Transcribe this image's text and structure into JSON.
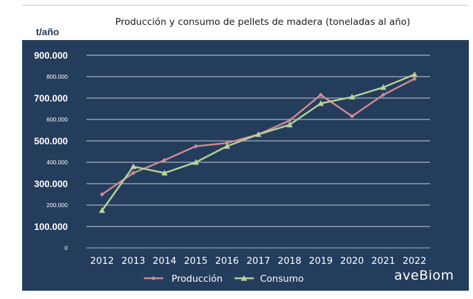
{
  "logo_text": "aveBiom",
  "chart_data": {
    "type": "line",
    "title": "Producción y consumo de pellets de madera (toneladas al año)",
    "ylabel": "t/año",
    "categories": [
      "2012",
      "2013",
      "2014",
      "2015",
      "2016",
      "2017",
      "2018",
      "2019",
      "2020",
      "2021",
      "2022"
    ],
    "ylim": [
      0,
      900000
    ],
    "yticks": [
      {
        "value": 0,
        "label": "0",
        "major": false
      },
      {
        "value": 100000,
        "label": "100.000",
        "major": true
      },
      {
        "value": 200000,
        "label": "200.000",
        "major": false
      },
      {
        "value": 300000,
        "label": "300.000",
        "major": true
      },
      {
        "value": 400000,
        "label": "400.000",
        "major": false
      },
      {
        "value": 500000,
        "label": "500.000",
        "major": true
      },
      {
        "value": 600000,
        "label": "600.000",
        "major": false
      },
      {
        "value": 700000,
        "label": "700.000",
        "major": true
      },
      {
        "value": 800000,
        "label": "800.000",
        "major": false
      },
      {
        "value": 900000,
        "label": "900.000",
        "major": true
      }
    ],
    "grid": true,
    "legend_position": "bottom",
    "series": [
      {
        "name": "Producción",
        "color": "#d08a94",
        "marker": "diamond",
        "values": [
          250000,
          350000,
          410000,
          475000,
          490000,
          530000,
          595000,
          715000,
          615000,
          715000,
          790000
        ]
      },
      {
        "name": "Consumo",
        "color": "#b7d39a",
        "marker": "triangle",
        "values": [
          175000,
          380000,
          350000,
          400000,
          475000,
          530000,
          575000,
          675000,
          705000,
          750000,
          810000
        ]
      }
    ]
  }
}
